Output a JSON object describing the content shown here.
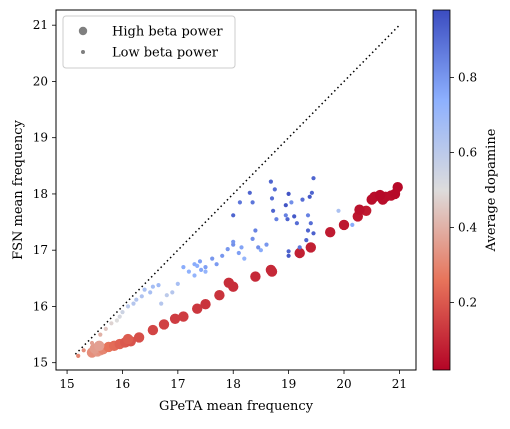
{
  "chart_data": {
    "type": "scatter",
    "xlabel": "GPeTA mean frequency",
    "ylabel": "FSN mean frequency",
    "xlim": [
      14.8,
      21.3
    ],
    "ylim": [
      14.87,
      21.27
    ],
    "xticks": [
      "15",
      "16",
      "17",
      "18",
      "19",
      "20",
      "21"
    ],
    "yticks": [
      "15",
      "16",
      "17",
      "18",
      "19",
      "20",
      "21"
    ],
    "grid": false,
    "legend": {
      "placement": "top-left",
      "entries": [
        {
          "label": "High beta power",
          "marker": "large"
        },
        {
          "label": "Low beta power",
          "marker": "small"
        }
      ]
    },
    "colorbar": {
      "label": "Average dopamine",
      "colormap": "coolwarm_reversed",
      "range": [
        0.02,
        0.98
      ],
      "ticks": [
        "0.2",
        "0.4",
        "0.6",
        "0.8"
      ]
    },
    "reference_line": {
      "style": "dotted",
      "x": [
        15.15,
        21.0
      ],
      "y": [
        15.15,
        21.0
      ]
    },
    "series": [
      {
        "name": "High beta power",
        "points": [
          [
            15.45,
            15.18,
            0.32
          ],
          [
            15.55,
            15.2,
            0.34
          ],
          [
            15.6,
            15.22,
            0.33
          ],
          [
            15.5,
            15.25,
            0.35
          ],
          [
            15.65,
            15.24,
            0.3
          ],
          [
            15.75,
            15.28,
            0.26
          ],
          [
            15.85,
            15.3,
            0.24
          ],
          [
            15.95,
            15.33,
            0.22
          ],
          [
            16.05,
            15.36,
            0.2
          ],
          [
            16.15,
            15.38,
            0.19
          ],
          [
            16.3,
            15.45,
            0.18
          ],
          [
            15.58,
            15.3,
            0.36
          ],
          [
            16.1,
            15.42,
            0.21
          ],
          [
            16.55,
            15.58,
            0.16
          ],
          [
            16.75,
            15.68,
            0.15
          ],
          [
            16.95,
            15.78,
            0.14
          ],
          [
            17.1,
            15.82,
            0.14
          ],
          [
            17.35,
            15.96,
            0.13
          ],
          [
            17.5,
            16.04,
            0.12
          ],
          [
            17.75,
            16.2,
            0.12
          ],
          [
            18.0,
            16.35,
            0.11
          ],
          [
            17.92,
            16.42,
            0.11
          ],
          [
            18.4,
            16.53,
            0.1
          ],
          [
            18.7,
            16.62,
            0.1
          ],
          [
            18.68,
            16.65,
            0.1
          ],
          [
            19.2,
            16.95,
            0.08
          ],
          [
            19.4,
            17.05,
            0.08
          ],
          [
            19.75,
            17.32,
            0.07
          ],
          [
            20.0,
            17.45,
            0.06
          ],
          [
            20.25,
            17.6,
            0.06
          ],
          [
            20.4,
            17.7,
            0.07
          ],
          [
            20.28,
            17.72,
            0.05
          ],
          [
            20.5,
            17.9,
            0.04
          ],
          [
            20.55,
            17.95,
            0.04
          ],
          [
            20.7,
            17.9,
            0.04
          ],
          [
            20.75,
            17.95,
            0.04
          ],
          [
            20.85,
            17.97,
            0.04
          ],
          [
            20.92,
            18.0,
            0.03
          ],
          [
            20.97,
            18.12,
            0.03
          ],
          [
            20.65,
            17.98,
            0.03
          ]
        ]
      },
      {
        "name": "Low beta power",
        "points": [
          [
            15.2,
            15.12,
            0.3
          ],
          [
            15.3,
            15.22,
            0.32
          ],
          [
            15.45,
            15.35,
            0.36
          ],
          [
            15.6,
            15.5,
            0.4
          ],
          [
            15.7,
            15.6,
            0.45
          ],
          [
            15.8,
            15.7,
            0.48
          ],
          [
            15.9,
            15.75,
            0.5
          ],
          [
            15.95,
            15.82,
            0.52
          ],
          [
            16.0,
            15.9,
            0.55
          ],
          [
            16.1,
            16.0,
            0.6
          ],
          [
            16.2,
            16.05,
            0.62
          ],
          [
            16.25,
            16.12,
            0.63
          ],
          [
            16.35,
            16.18,
            0.64
          ],
          [
            16.5,
            16.25,
            0.66
          ],
          [
            16.55,
            16.35,
            0.67
          ],
          [
            16.65,
            16.38,
            0.68
          ],
          [
            16.8,
            16.2,
            0.6
          ],
          [
            16.9,
            16.25,
            0.62
          ],
          [
            17.0,
            16.4,
            0.66
          ],
          [
            17.1,
            16.7,
            0.75
          ],
          [
            17.2,
            16.62,
            0.73
          ],
          [
            17.3,
            16.55,
            0.72
          ],
          [
            17.4,
            16.8,
            0.78
          ],
          [
            17.42,
            16.65,
            0.76
          ],
          [
            17.5,
            16.7,
            0.78
          ],
          [
            17.7,
            16.75,
            0.79
          ],
          [
            17.62,
            16.85,
            0.8
          ],
          [
            17.8,
            16.9,
            0.8
          ],
          [
            17.9,
            17.02,
            0.8
          ],
          [
            18.0,
            17.1,
            0.82
          ],
          [
            18.1,
            16.95,
            0.78
          ],
          [
            18.15,
            17.05,
            0.77
          ],
          [
            18.2,
            16.85,
            0.72
          ],
          [
            18.35,
            17.2,
            0.82
          ],
          [
            18.5,
            17.0,
            0.75
          ],
          [
            18.6,
            17.1,
            0.8
          ],
          [
            18.4,
            17.35,
            0.85
          ],
          [
            18.78,
            17.55,
            0.85
          ],
          [
            18.95,
            17.62,
            0.85
          ],
          [
            19.05,
            17.85,
            0.82
          ],
          [
            18.7,
            17.92,
            0.9
          ],
          [
            18.75,
            18.08,
            0.9
          ],
          [
            18.0,
            17.62,
            0.92
          ],
          [
            18.12,
            17.85,
            0.88
          ],
          [
            18.35,
            17.85,
            0.88
          ],
          [
            18.72,
            17.7,
            0.92
          ],
          [
            18.98,
            17.55,
            0.92
          ],
          [
            19.25,
            17.9,
            0.9
          ],
          [
            19.35,
            17.35,
            0.92
          ],
          [
            19.4,
            17.48,
            0.9
          ],
          [
            19.32,
            17.18,
            0.92
          ],
          [
            19.0,
            16.9,
            0.95
          ],
          [
            19.0,
            16.98,
            0.92
          ],
          [
            19.2,
            17.05,
            0.88
          ],
          [
            19.45,
            18.28,
            0.92
          ],
          [
            19.42,
            18.02,
            0.92
          ],
          [
            18.68,
            18.22,
            0.92
          ],
          [
            18.3,
            18.02,
            0.92
          ],
          [
            19.0,
            18.0,
            0.96
          ],
          [
            19.38,
            17.95,
            0.95
          ],
          [
            19.35,
            17.62,
            0.85
          ],
          [
            19.45,
            17.3,
            0.93
          ],
          [
            20.15,
            17.45,
            0.75
          ],
          [
            19.9,
            17.7,
            0.65
          ],
          [
            19.1,
            17.6,
            0.95
          ],
          [
            18.95,
            17.8,
            0.96
          ],
          [
            19.15,
            17.48,
            0.9
          ],
          [
            16.7,
            16.05,
            0.62
          ],
          [
            17.3,
            16.75,
            0.75
          ],
          [
            18.0,
            17.15,
            0.8
          ],
          [
            18.45,
            17.05,
            0.82
          ],
          [
            16.4,
            16.3,
            0.66
          ],
          [
            17.35,
            16.72,
            0.74
          ],
          [
            17.5,
            16.62,
            0.72
          ]
        ]
      }
    ]
  }
}
